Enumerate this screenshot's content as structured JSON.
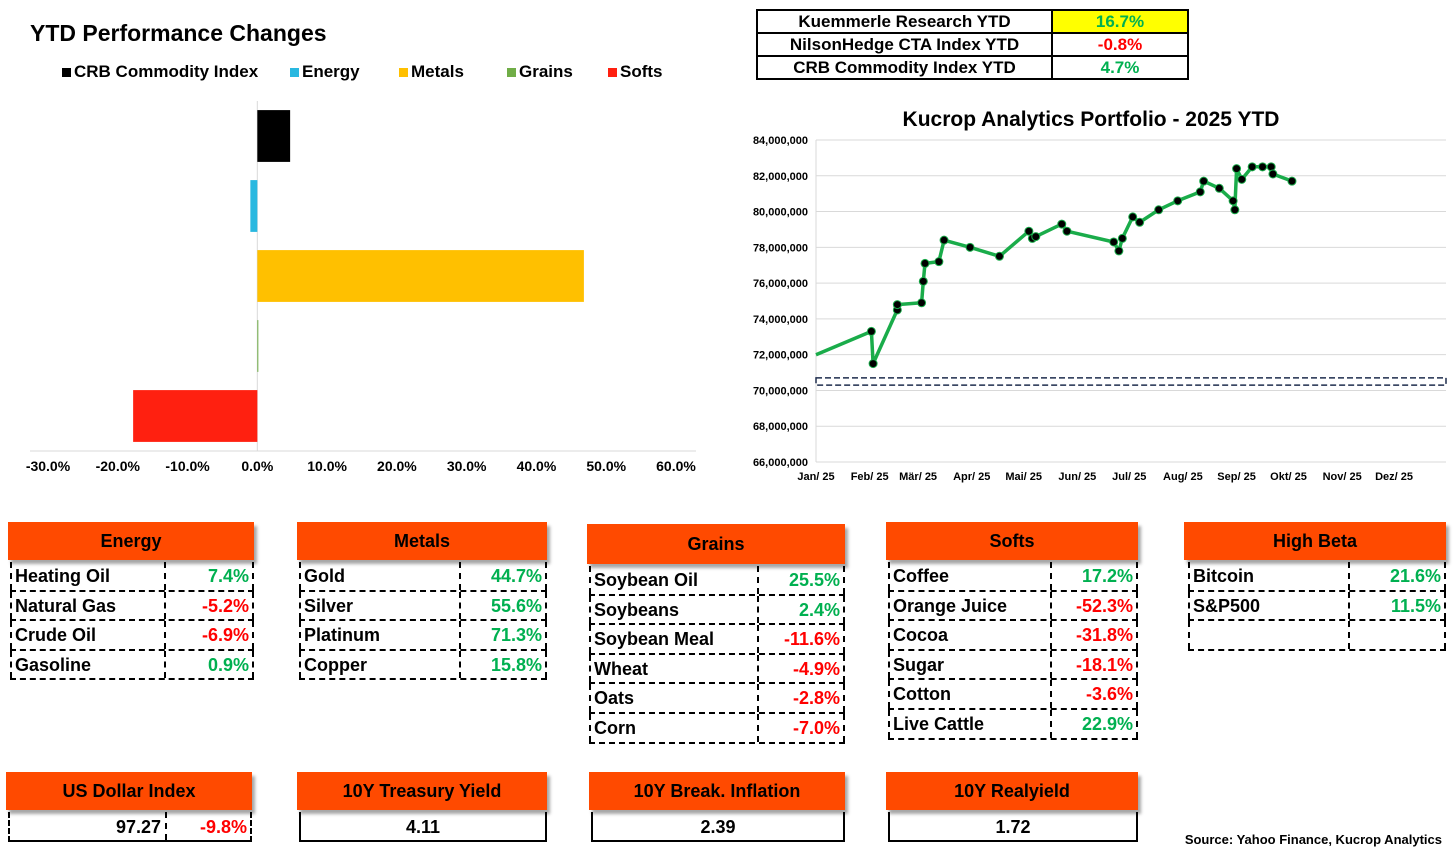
{
  "bar_chart_title": "YTD Performance Changes",
  "legend": [
    {
      "label": "CRB Commodity Index",
      "color": "#000000"
    },
    {
      "label": "Energy",
      "color": "#29b8e0"
    },
    {
      "label": "Metals",
      "color": "#ffc000"
    },
    {
      "label": "Grains",
      "color": "#70ad47"
    },
    {
      "label": "Softs",
      "color": "#ff2010"
    }
  ],
  "summary_table": [
    {
      "label": "Kuemmerle Research YTD",
      "value": "16.7%",
      "value_color": "#00b050",
      "highlight": "#ffff00"
    },
    {
      "label": "NilsonHedge CTA Index YTD",
      "value": "-0.8%",
      "value_color": "#ff0000",
      "highlight": ""
    },
    {
      "label": "CRB Commodity Index YTD",
      "value": "4.7%",
      "value_color": "#00b050",
      "highlight": ""
    }
  ],
  "line_chart_title": "Kucrop Analytics Portfolio - 2025 YTD",
  "chart_data": [
    {
      "type": "bar",
      "orientation": "horizontal",
      "categories": [
        "CRB Commodity Index",
        "Energy",
        "Metals",
        "Grains",
        "Softs"
      ],
      "values": [
        4.7,
        -1.0,
        46.8,
        0.1,
        -17.8
      ],
      "colors": [
        "#000000",
        "#29b8e0",
        "#ffc000",
        "#70ad47",
        "#ff2010"
      ],
      "xlim": [
        -30,
        60
      ],
      "x_ticks": [
        "-30.0%",
        "-20.0%",
        "-10.0%",
        "0.0%",
        "10.0%",
        "20.0%",
        "30.0%",
        "40.0%",
        "50.0%",
        "60.0%"
      ],
      "grid": false
    },
    {
      "type": "line",
      "color": "#1aac4a",
      "ylim": [
        66000000,
        84000000
      ],
      "y_ticks": [
        "66,000,000",
        "68,000,000",
        "70,000,000",
        "72,000,000",
        "74,000,000",
        "76,000,000",
        "78,000,000",
        "80,000,000",
        "82,000,000",
        "84,000,000"
      ],
      "x_labels": [
        "Jan/ 25",
        "Feb/ 25",
        "Mär/ 25",
        "Apr/ 25",
        "Mai/ 25",
        "Jun/ 25",
        "Jul/ 25",
        "Aug/ 25",
        "Sep/ 25",
        "Okt/ 25",
        "Nov/ 25",
        "Dez/ 25"
      ],
      "grid": true,
      "baseline_band": [
        70300000,
        70700000
      ],
      "points": [
        {
          "x": "2025-01-01",
          "y": 72000000,
          "marker": false
        },
        {
          "x": "2025-02-02",
          "y": 73300000,
          "marker": true
        },
        {
          "x": "2025-02-03",
          "y": 71500000,
          "marker": true
        },
        {
          "x": "2025-02-17",
          "y": 74500000,
          "marker": true
        },
        {
          "x": "2025-02-17",
          "y": 74800000,
          "marker": true
        },
        {
          "x": "2025-03-03",
          "y": 74900000,
          "marker": true
        },
        {
          "x": "2025-03-04",
          "y": 76100000,
          "marker": true
        },
        {
          "x": "2025-03-05",
          "y": 77100000,
          "marker": true
        },
        {
          "x": "2025-03-13",
          "y": 77200000,
          "marker": true
        },
        {
          "x": "2025-03-16",
          "y": 78400000,
          "marker": true
        },
        {
          "x": "2025-03-31",
          "y": 78000000,
          "marker": true
        },
        {
          "x": "2025-04-17",
          "y": 77500000,
          "marker": true
        },
        {
          "x": "2025-05-04",
          "y": 78900000,
          "marker": true
        },
        {
          "x": "2025-05-06",
          "y": 78500000,
          "marker": true
        },
        {
          "x": "2025-05-08",
          "y": 78600000,
          "marker": true
        },
        {
          "x": "2025-05-23",
          "y": 79300000,
          "marker": true
        },
        {
          "x": "2025-05-26",
          "y": 78900000,
          "marker": true
        },
        {
          "x": "2025-06-22",
          "y": 78300000,
          "marker": true
        },
        {
          "x": "2025-06-25",
          "y": 77800000,
          "marker": true
        },
        {
          "x": "2025-06-27",
          "y": 78500000,
          "marker": true
        },
        {
          "x": "2025-07-03",
          "y": 79700000,
          "marker": true
        },
        {
          "x": "2025-07-07",
          "y": 79400000,
          "marker": true
        },
        {
          "x": "2025-07-18",
          "y": 80100000,
          "marker": true
        },
        {
          "x": "2025-07-29",
          "y": 80600000,
          "marker": true
        },
        {
          "x": "2025-08-11",
          "y": 81100000,
          "marker": true
        },
        {
          "x": "2025-08-13",
          "y": 81700000,
          "marker": true
        },
        {
          "x": "2025-08-22",
          "y": 81300000,
          "marker": true
        },
        {
          "x": "2025-08-30",
          "y": 80600000,
          "marker": true
        },
        {
          "x": "2025-08-31",
          "y": 80100000,
          "marker": true
        },
        {
          "x": "2025-09-01",
          "y": 82400000,
          "marker": true
        },
        {
          "x": "2025-09-04",
          "y": 81800000,
          "marker": true
        },
        {
          "x": "2025-09-10",
          "y": 82500000,
          "marker": true
        },
        {
          "x": "2025-09-16",
          "y": 82500000,
          "marker": true
        },
        {
          "x": "2025-09-21",
          "y": 82500000,
          "marker": true
        },
        {
          "x": "2025-09-22",
          "y": 82100000,
          "marker": true
        },
        {
          "x": "2025-10-03",
          "y": 81700000,
          "marker": true
        }
      ]
    }
  ],
  "categories": [
    {
      "title": "Energy",
      "rows": [
        {
          "name": "Heating Oil",
          "value": "7.4%",
          "sign": "pos"
        },
        {
          "name": "Natural Gas",
          "value": "-5.2%",
          "sign": "neg"
        },
        {
          "name": "Crude Oil",
          "value": "-6.9%",
          "sign": "neg"
        },
        {
          "name": "Gasoline",
          "value": "0.9%",
          "sign": "pos"
        }
      ]
    },
    {
      "title": "Metals",
      "rows": [
        {
          "name": "Gold",
          "value": "44.7%",
          "sign": "pos"
        },
        {
          "name": "Silver",
          "value": "55.6%",
          "sign": "pos"
        },
        {
          "name": "Platinum",
          "value": "71.3%",
          "sign": "pos"
        },
        {
          "name": "Copper",
          "value": "15.8%",
          "sign": "pos"
        }
      ]
    },
    {
      "title": "Grains",
      "rows": [
        {
          "name": "Soybean Oil",
          "value": "25.5%",
          "sign": "pos"
        },
        {
          "name": "Soybeans",
          "value": "2.4%",
          "sign": "pos"
        },
        {
          "name": "Soybean Meal",
          "value": "-11.6%",
          "sign": "neg"
        },
        {
          "name": "Wheat",
          "value": "-4.9%",
          "sign": "neg"
        },
        {
          "name": "Oats",
          "value": "-2.8%",
          "sign": "neg"
        },
        {
          "name": "Corn",
          "value": "-7.0%",
          "sign": "neg"
        }
      ]
    },
    {
      "title": "Softs",
      "rows": [
        {
          "name": "Coffee",
          "value": "17.2%",
          "sign": "pos"
        },
        {
          "name": "Orange Juice",
          "value": "-52.3%",
          "sign": "neg"
        },
        {
          "name": "Cocoa",
          "value": "-31.8%",
          "sign": "neg"
        },
        {
          "name": "Sugar",
          "value": "-18.1%",
          "sign": "neg"
        },
        {
          "name": "Cotton",
          "value": "-3.6%",
          "sign": "neg"
        },
        {
          "name": "Live Cattle",
          "value": "22.9%",
          "sign": "pos"
        }
      ]
    },
    {
      "title": "High Beta",
      "rows": [
        {
          "name": "Bitcoin",
          "value": "21.6%",
          "sign": "pos"
        },
        {
          "name": "S&P500",
          "value": "11.5%",
          "sign": "pos"
        },
        {
          "name": "",
          "value": "",
          "sign": "pos"
        }
      ]
    }
  ],
  "indicators": [
    {
      "title": "US Dollar Index",
      "value": "97.27",
      "change": "-9.8%",
      "sign": "neg"
    },
    {
      "title": "10Y Treasury Yield",
      "value": "4.11"
    },
    {
      "title": "10Y Break. Inflation",
      "value": "2.39"
    },
    {
      "title": "10Y Realyield",
      "value": "1.72"
    }
  ],
  "source": "Source: Yahoo Finance, Kucrop Analytics"
}
